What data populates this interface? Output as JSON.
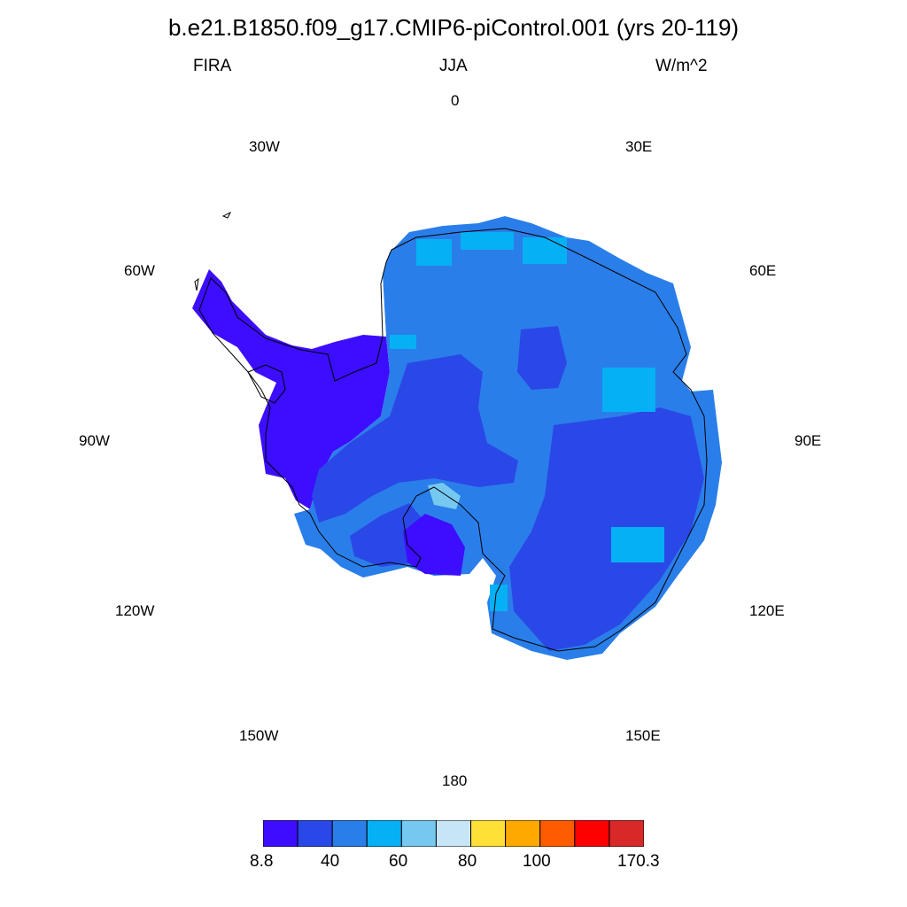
{
  "title": "b.e21.B1850.f09_g17.CMIP6-piControl.001 (yrs 20-119)",
  "subtitle": {
    "left": "FIRA",
    "center": "JJA",
    "right": "W/m^2"
  },
  "longitude_labels": {
    "lon_0": "0",
    "lon_30e": "30E",
    "lon_60e": "60E",
    "lon_90e": "90E",
    "lon_120e": "120E",
    "lon_150e": "150E",
    "lon_180": "180",
    "lon_150w": "150W",
    "lon_120w": "120W",
    "lon_90w": "90W",
    "lon_60w": "60W",
    "lon_30w": "30W"
  },
  "projection": "south polar stereographic",
  "variable": "FIRA",
  "season": "JJA",
  "units": "W/m^2",
  "colorbar": {
    "colors": [
      "#3d0dff",
      "#2a48e8",
      "#2a7ee9",
      "#06b0f5",
      "#76c8f0",
      "#c6e6f8",
      "#ffe036",
      "#ffa900",
      "#ff5b00",
      "#fc0100",
      "#d82828"
    ],
    "tick_labels": {
      "t0": "8.8",
      "t1": "40",
      "t2": "60",
      "t3": "80",
      "t4": "100",
      "t5": "170.3"
    }
  },
  "colors": {
    "ice_dominant": "#2a7ee9",
    "ice_interior": "#2a48e8",
    "peninsula": "#3d0dff",
    "coastal_high": "#06b0f5",
    "ross_shelf_high": "#76c8f0"
  }
}
